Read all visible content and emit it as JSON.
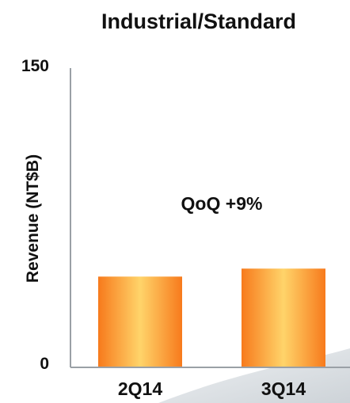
{
  "chart_data": {
    "type": "bar",
    "title": "Industrial/Standard",
    "ylabel": "Revenue (NT$B)",
    "xlabel": "",
    "ylim": [
      0,
      150
    ],
    "yticks": [
      "150",
      "0"
    ],
    "categories": [
      "2Q14",
      "3Q14"
    ],
    "values": [
      45.5,
      49.5
    ],
    "annotation": "QoQ +9%",
    "bar_color_edge": "#f77a1c",
    "bar_color_center": "#ffd46a"
  }
}
